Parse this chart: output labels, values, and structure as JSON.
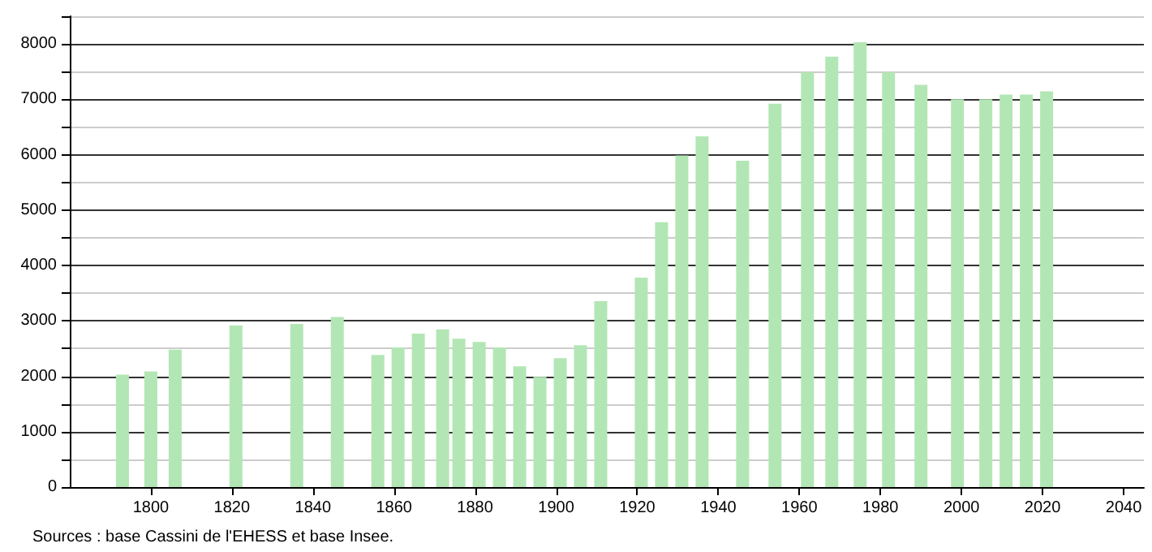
{
  "chart_data": {
    "type": "bar",
    "x": [
      1793,
      1800,
      1806,
      1821,
      1836,
      1846,
      1856,
      1861,
      1866,
      1872,
      1876,
      1881,
      1886,
      1891,
      1896,
      1901,
      1906,
      1911,
      1921,
      1926,
      1931,
      1936,
      1946,
      1954,
      1962,
      1968,
      1975,
      1982,
      1990,
      1999,
      2006,
      2011,
      2016,
      2021
    ],
    "values": [
      2030,
      2090,
      2480,
      2915,
      2945,
      3070,
      2385,
      2520,
      2770,
      2845,
      2680,
      2620,
      2520,
      2180,
      1990,
      2325,
      2560,
      3355,
      3780,
      4780,
      5985,
      6330,
      5890,
      6920,
      7490,
      7770,
      8030,
      7490,
      7260,
      7000,
      7000,
      7085,
      7085,
      7145
    ],
    "color": "#b3e6b5",
    "xlim": [
      1780,
      2045
    ],
    "xticks": [
      1800,
      1820,
      1840,
      1860,
      1880,
      1900,
      1920,
      1940,
      1960,
      1980,
      2000,
      2020,
      2040
    ],
    "ylim": [
      0,
      8500
    ],
    "yticks": [
      0,
      {
        "value": 500,
        "label": null
      },
      1000,
      {
        "value": 1500,
        "label": null
      },
      2000,
      {
        "value": 2500,
        "label": null
      },
      3000,
      {
        "value": 3500,
        "label": null
      },
      4000,
      {
        "value": 4500,
        "label": null
      },
      5000,
      {
        "value": 5500,
        "label": null
      },
      6000,
      {
        "value": 6500,
        "label": null
      },
      7000,
      {
        "value": 7500,
        "label": null
      },
      8000,
      {
        "value": 8500,
        "label": null
      }
    ],
    "grid": "y",
    "annotations": [
      "Sources : base Cassini de l'EHESS et base Insee."
    ]
  }
}
